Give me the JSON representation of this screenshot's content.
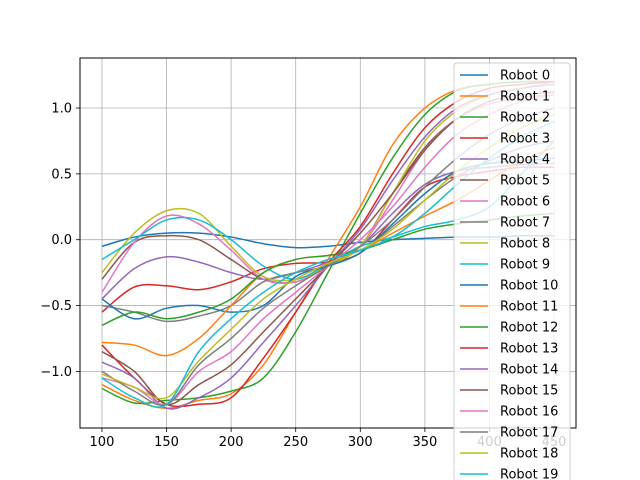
{
  "chart_data": {
    "type": "line",
    "title": "",
    "xlabel": "",
    "ylabel": "",
    "xlim": [
      83,
      467
    ],
    "ylim": [
      -1.43,
      1.38
    ],
    "xticks": [
      100,
      150,
      200,
      250,
      300,
      350,
      400,
      450
    ],
    "yticks": [
      -1.0,
      -0.5,
      0.0,
      0.5,
      1.0
    ],
    "xtick_labels": [
      "100",
      "150",
      "200",
      "250",
      "300",
      "350",
      "400",
      "450"
    ],
    "ytick_labels": [
      "−1.0",
      "−0.5",
      "0.0",
      "0.5",
      "1.0"
    ],
    "grid": true,
    "legend_position": "upper right",
    "x": [
      100,
      125,
      150,
      175,
      200,
      225,
      250,
      275,
      300,
      325,
      350,
      375,
      400,
      425,
      450
    ],
    "series": [
      {
        "name": "Robot 0",
        "color": "#1f77b4",
        "values": [
          -0.05,
          0.02,
          0.05,
          0.05,
          0.02,
          -0.03,
          -0.06,
          -0.05,
          -0.02,
          0.0,
          0.01,
          0.02,
          0.02,
          0.03,
          0.03
        ]
      },
      {
        "name": "Robot 1",
        "color": "#ff7f0e",
        "values": [
          -1.1,
          -1.22,
          -1.28,
          -1.22,
          -1.17,
          -0.95,
          -0.55,
          -0.15,
          0.25,
          0.72,
          1.0,
          1.14,
          1.18,
          1.2,
          1.2
        ]
      },
      {
        "name": "Robot 2",
        "color": "#2ca02c",
        "values": [
          -1.13,
          -1.24,
          -1.22,
          -1.2,
          -1.15,
          -1.05,
          -0.7,
          -0.25,
          0.2,
          0.62,
          0.95,
          1.13,
          1.18,
          1.2,
          1.2
        ]
      },
      {
        "name": "Robot 3",
        "color": "#d62728",
        "values": [
          -0.55,
          -0.36,
          -0.35,
          -0.38,
          -0.32,
          -0.22,
          -0.18,
          -0.17,
          -0.1,
          0.15,
          0.4,
          0.48,
          0.52,
          0.55,
          0.55
        ]
      },
      {
        "name": "Robot 4",
        "color": "#9467bd",
        "values": [
          -0.45,
          -0.22,
          -0.13,
          -0.17,
          -0.25,
          -0.3,
          -0.25,
          -0.17,
          -0.05,
          0.2,
          0.42,
          0.52,
          0.55,
          0.57,
          0.58
        ]
      },
      {
        "name": "Robot 5",
        "color": "#8c564b",
        "values": [
          -0.3,
          -0.02,
          0.03,
          0.0,
          -0.15,
          -0.3,
          -0.32,
          -0.2,
          -0.05,
          0.35,
          0.7,
          0.92,
          1.03,
          1.08,
          1.1
        ]
      },
      {
        "name": "Robot 6",
        "color": "#e377c2",
        "values": [
          -0.4,
          -0.02,
          0.18,
          0.12,
          -0.08,
          -0.3,
          -0.32,
          -0.2,
          -0.05,
          0.3,
          0.68,
          0.92,
          1.03,
          1.08,
          1.1
        ]
      },
      {
        "name": "Robot 7",
        "color": "#7f7f7f",
        "values": [
          -0.5,
          -0.55,
          -0.62,
          -0.58,
          -0.5,
          -0.32,
          -0.25,
          -0.2,
          -0.1,
          0.1,
          0.3,
          0.48,
          0.6,
          0.7,
          0.75
        ]
      },
      {
        "name": "Robot 8",
        "color": "#bcbd22",
        "values": [
          -0.25,
          0.05,
          0.22,
          0.2,
          -0.05,
          -0.28,
          -0.3,
          -0.2,
          -0.05,
          0.35,
          0.75,
          0.98,
          1.1,
          1.15,
          1.2
        ]
      },
      {
        "name": "Robot 9",
        "color": "#17becf",
        "values": [
          -0.15,
          0.0,
          0.15,
          0.15,
          0.0,
          -0.2,
          -0.3,
          -0.18,
          -0.05,
          0.02,
          0.1,
          0.15,
          0.25,
          0.5,
          0.75
        ]
      },
      {
        "name": "Robot 10",
        "color": "#1f77b4",
        "values": [
          -0.45,
          -0.6,
          -0.52,
          -0.5,
          -0.55,
          -0.5,
          -0.28,
          -0.2,
          -0.1,
          0.12,
          0.35,
          0.52,
          0.58,
          0.6,
          0.62
        ]
      },
      {
        "name": "Robot 11",
        "color": "#ff7f0e",
        "values": [
          -0.78,
          -0.8,
          -0.88,
          -0.75,
          -0.5,
          -0.25,
          -0.15,
          -0.12,
          -0.08,
          0.05,
          0.18,
          0.3,
          0.45,
          0.6,
          0.7
        ]
      },
      {
        "name": "Robot 12",
        "color": "#2ca02c",
        "values": [
          -0.65,
          -0.55,
          -0.6,
          -0.55,
          -0.45,
          -0.25,
          -0.15,
          -0.12,
          -0.08,
          0.0,
          0.08,
          0.12,
          0.15,
          0.18,
          0.2
        ]
      },
      {
        "name": "Robot 13",
        "color": "#d62728",
        "values": [
          -0.8,
          -1.05,
          -1.25,
          -1.25,
          -1.2,
          -0.9,
          -0.55,
          -0.18,
          0.1,
          0.5,
          0.85,
          1.05,
          1.15,
          1.18,
          1.2
        ]
      },
      {
        "name": "Robot 14",
        "color": "#9467bd",
        "values": [
          -0.93,
          -1.05,
          -1.28,
          -1.2,
          -1.05,
          -0.78,
          -0.5,
          -0.2,
          0.08,
          0.45,
          0.78,
          1.0,
          1.1,
          1.15,
          1.18
        ]
      },
      {
        "name": "Robot 15",
        "color": "#8c564b",
        "values": [
          -0.85,
          -1.0,
          -1.25,
          -1.1,
          -0.95,
          -0.7,
          -0.45,
          -0.2,
          0.05,
          0.35,
          0.68,
          0.92,
          1.05,
          1.1,
          1.12
        ]
      },
      {
        "name": "Robot 16",
        "color": "#e377c2",
        "values": [
          -1.05,
          -1.12,
          -1.25,
          -1.0,
          -0.85,
          -0.6,
          -0.4,
          -0.2,
          0.0,
          0.25,
          0.55,
          0.8,
          0.95,
          1.05,
          1.1
        ]
      },
      {
        "name": "Robot 17",
        "color": "#7f7f7f",
        "values": [
          -1.0,
          -1.15,
          -1.25,
          -0.95,
          -0.75,
          -0.52,
          -0.35,
          -0.2,
          -0.05,
          0.15,
          0.4,
          0.62,
          0.8,
          0.92,
          1.0
        ]
      },
      {
        "name": "Robot 18",
        "color": "#bcbd22",
        "values": [
          -1.02,
          -1.12,
          -1.2,
          -0.92,
          -0.68,
          -0.45,
          -0.3,
          -0.18,
          -0.08,
          0.08,
          0.3,
          0.52,
          0.7,
          0.85,
          0.95
        ]
      },
      {
        "name": "Robot 19",
        "color": "#17becf",
        "values": [
          -1.05,
          -1.2,
          -1.25,
          -0.85,
          -0.6,
          -0.4,
          -0.25,
          -0.15,
          -0.08,
          0.02,
          0.2,
          0.42,
          0.62,
          0.78,
          0.9
        ]
      }
    ]
  }
}
